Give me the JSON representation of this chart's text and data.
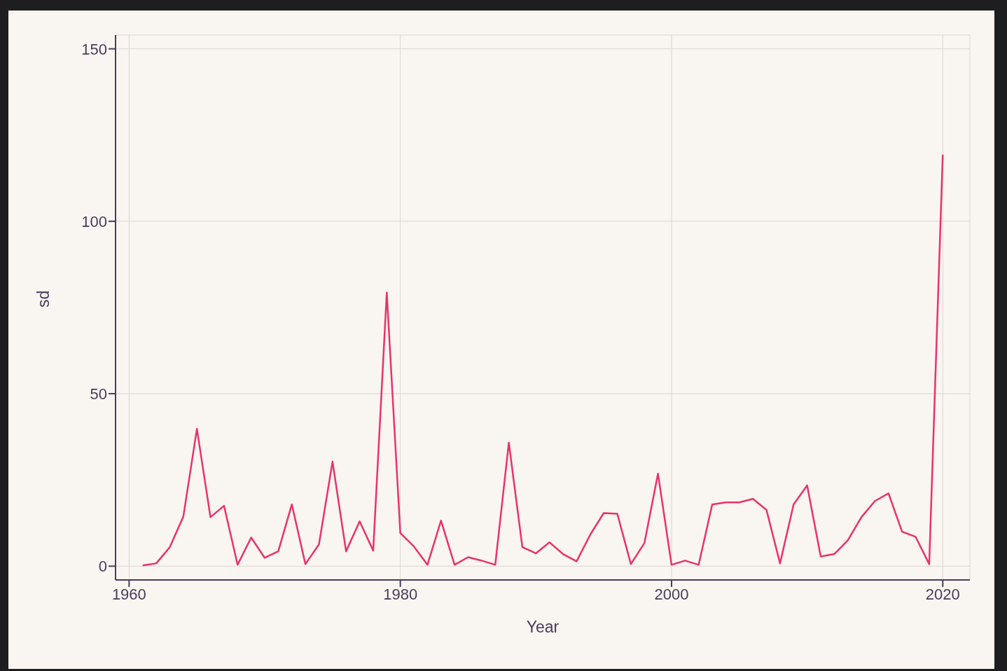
{
  "chart_data": {
    "type": "line",
    "xlabel": "Year",
    "ylabel": "sd",
    "x": [
      1961,
      1962,
      1963,
      1964,
      1965,
      1966,
      1967,
      1968,
      1969,
      1970,
      1971,
      1972,
      1973,
      1974,
      1975,
      1976,
      1977,
      1978,
      1979,
      1980,
      1981,
      1982,
      1983,
      1984,
      1985,
      1986,
      1987,
      1988,
      1989,
      1990,
      1991,
      1992,
      1993,
      1994,
      1995,
      1996,
      1997,
      1998,
      1999,
      2000,
      2001,
      2002,
      2003,
      2004,
      2005,
      2006,
      2007,
      2008,
      2009,
      2010,
      2011,
      2012,
      2013,
      2014,
      2015,
      2016,
      2017,
      2018,
      2019,
      2020
    ],
    "series": [
      {
        "color": "#e8336a",
        "values": [
          0.2,
          0.8,
          5.5,
          14.4,
          39.8,
          14.2,
          17.5,
          0.4,
          8.3,
          2.4,
          4.3,
          17.9,
          0.6,
          6.3,
          30.3,
          4.3,
          13,
          4.5,
          79.3,
          9.6,
          5.7,
          0.4,
          13.2,
          0.4,
          2.6,
          1.6,
          0.4,
          35.8,
          5.5,
          3.7,
          6.9,
          3.5,
          1.4,
          9.1,
          15.4,
          15.2,
          0.6,
          6.7,
          26.8,
          0.4,
          1.6,
          0.4,
          17.9,
          18.5,
          18.5,
          19.5,
          16.3,
          0.8,
          17.9,
          23.4,
          2.8,
          3.5,
          7.5,
          14.2,
          18.9,
          21.1,
          10,
          8.5,
          0.6,
          119.3
        ]
      }
    ],
    "xlim": [
      1959,
      2022
    ],
    "xticks": [
      1960,
      1980,
      2000,
      2020
    ],
    "ylim": [
      -4,
      154
    ],
    "yticks": [
      0,
      50,
      100,
      150
    ],
    "grid": true,
    "legend": false,
    "marker": "none",
    "line_style": "solid"
  }
}
